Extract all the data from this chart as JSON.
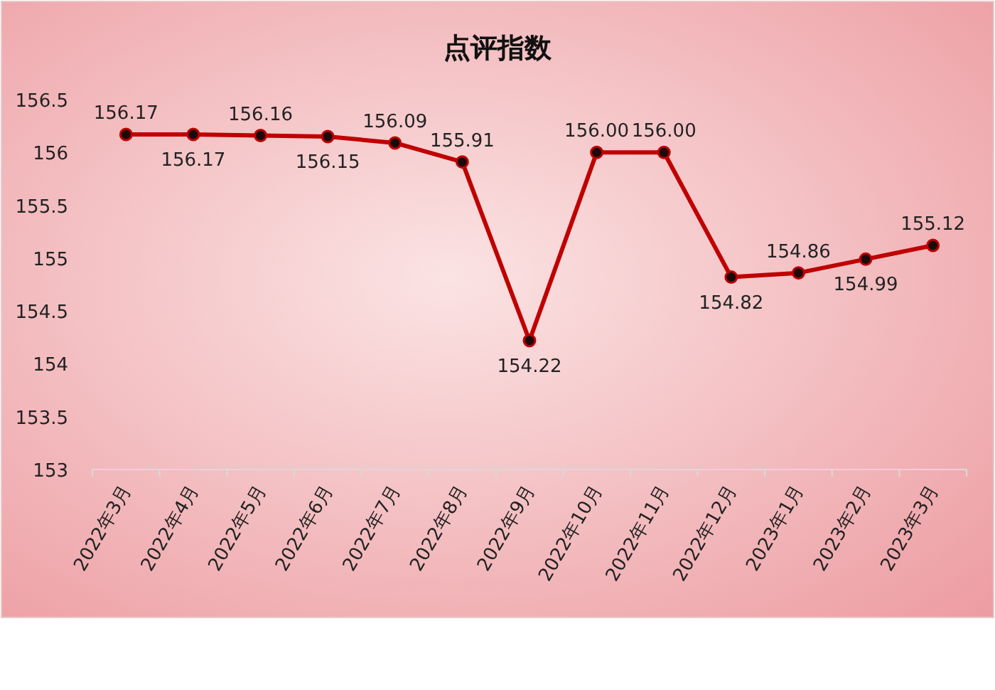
{
  "chart_data": {
    "type": "line",
    "title": "点评指数",
    "categories": [
      "2022年3月",
      "2022年4月",
      "2022年5月",
      "2022年6月",
      "2022年7月",
      "2022年8月",
      "2022年9月",
      "2022年10月",
      "2022年11月",
      "2022年12月",
      "2023年1月",
      "2023年2月",
      "2023年3月"
    ],
    "series": [
      {
        "color": "#c00000",
        "values": [
          156.17,
          156.17,
          156.16,
          156.15,
          156.09,
          155.91,
          154.22,
          156.0,
          156.0,
          154.82,
          154.86,
          154.99,
          155.12
        ],
        "value_labels": [
          "156.17",
          "156.17",
          "156.16",
          "156.15",
          "156.09",
          "155.91",
          "154.22",
          "156.00",
          "156.00",
          "154.82",
          "154.86",
          "154.99",
          "155.12"
        ]
      }
    ],
    "ylim": [
      153,
      156.5
    ],
    "yticks": [
      153,
      153.5,
      154,
      154.5,
      155,
      155.5,
      {
        "value": 156,
        "label": "156"
      },
      156.5
    ],
    "marker": "circle",
    "line_style": "solid",
    "grid": false
  }
}
